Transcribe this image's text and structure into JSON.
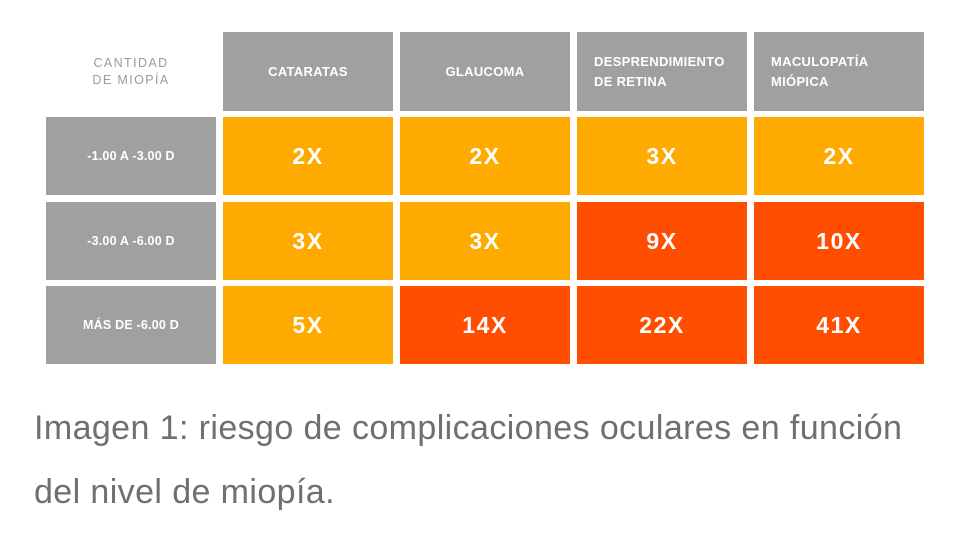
{
  "colors": {
    "header_bg": "#a0a0a0",
    "header_text": "#ffffff",
    "corner_text": "#9b9b9b",
    "risk_moderate": "#ffaa00",
    "risk_high": "#ff4e00",
    "caption_text": "#6f6f6f"
  },
  "chart_data": {
    "type": "table",
    "row_header_title": [
      "CANTIDAD",
      "DE MIOPÍA"
    ],
    "columns": [
      [
        "CATARATAS"
      ],
      [
        "GLAUCOMA"
      ],
      [
        "DESPRENDIMIENTO",
        "DE RETINA"
      ],
      [
        "MACULOPATÍA",
        "MIÓPICA"
      ]
    ],
    "rows": [
      {
        "label": "-1.00 A -3.00 D",
        "values": [
          "2X",
          "2X",
          "3X",
          "2X"
        ],
        "levels": [
          "moderate",
          "moderate",
          "moderate",
          "moderate"
        ]
      },
      {
        "label": "-3.00 A -6.00 D",
        "values": [
          "3X",
          "3X",
          "9X",
          "10X"
        ],
        "levels": [
          "moderate",
          "moderate",
          "high",
          "high"
        ]
      },
      {
        "label": "MÁS DE -6.00 D",
        "values": [
          "5X",
          "14X",
          "22X",
          "41X"
        ],
        "levels": [
          "moderate",
          "high",
          "high",
          "high"
        ]
      }
    ]
  },
  "caption": {
    "line1": "Imagen 1: riesgo de complicaciones oculares en función",
    "line2": "del nivel de miopía."
  }
}
